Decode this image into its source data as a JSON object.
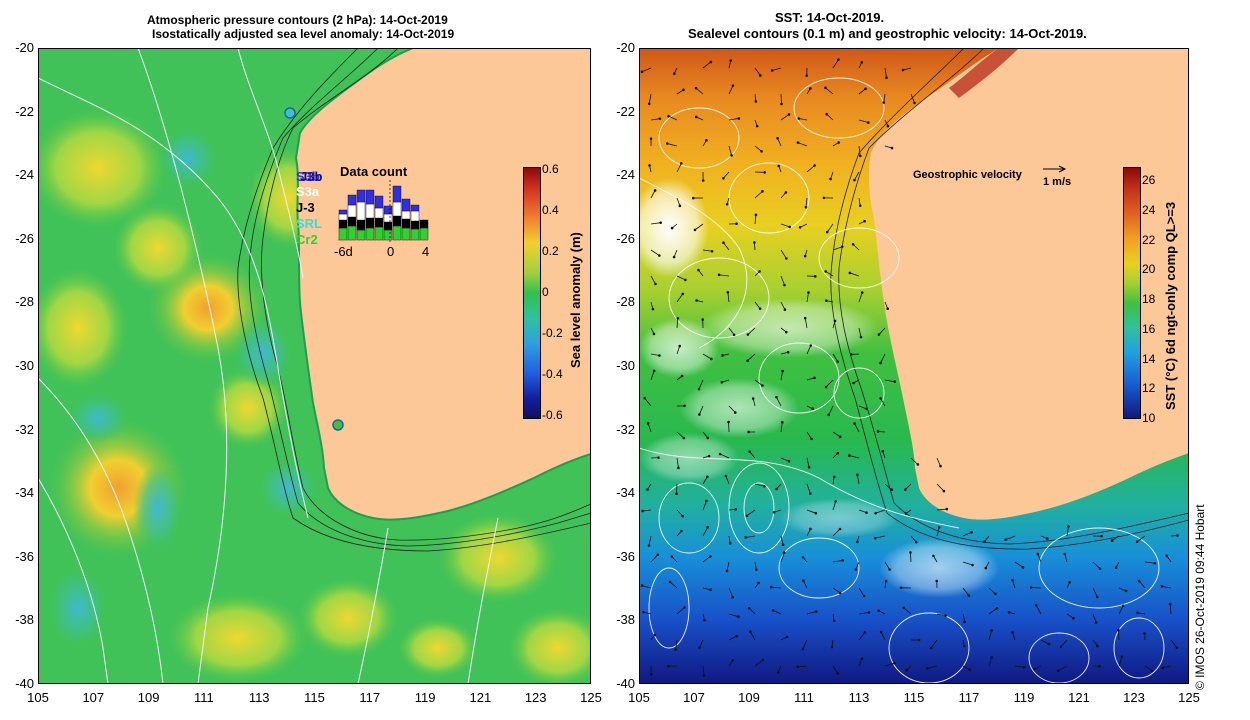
{
  "left_panel": {
    "title_line1": "Atmospheric pressure contours (2 hPa): 14-Oct-2019",
    "title_line2": "Isostatically adjusted sea level anomaly: 14-Oct-2019",
    "colorbar_label": "Sea level anomaly (m)",
    "colorbar_ticks": [
      "0.6",
      "0.4",
      "0.2",
      "0",
      "-0.2",
      "-0.4",
      "-0.6"
    ],
    "data_count": {
      "title": "Data count",
      "satellites": [
        {
          "name": "S3b",
          "color": "#3030e0"
        },
        {
          "name": "J3b",
          "color": "#101080"
        },
        {
          "name": "S3a",
          "color": "#ffffff"
        },
        {
          "name": "J-3",
          "color": "#000000"
        },
        {
          "name": "SRL",
          "color": "#30e0e0"
        },
        {
          "name": "Cr2",
          "color": "#30d030"
        }
      ],
      "axis_labels": [
        "-6d",
        "0",
        "4"
      ]
    }
  },
  "right_panel": {
    "title_line1": "SST: 14-Oct-2019.",
    "title_line2": "Sealevel contours (0.1 m) and geostrophic velocity: 14-Oct-2019.",
    "velocity_label": "Geostrophic velocity",
    "velocity_scale": "1 m/s",
    "colorbar_label": "SST (°C) 6d ngt-only comp QL>=3",
    "colorbar_ticks": [
      "26",
      "24",
      "22",
      "20",
      "18",
      "16",
      "14",
      "12",
      "10"
    ]
  },
  "axes": {
    "lat_ticks": [
      "-20",
      "-22",
      "-24",
      "-26",
      "-28",
      "-30",
      "-32",
      "-34",
      "-36",
      "-38",
      "-40"
    ],
    "lon_ticks": [
      "105",
      "107",
      "109",
      "111",
      "113",
      "115",
      "117",
      "119",
      "121",
      "123",
      "125"
    ]
  },
  "credit": "©  IMOS 26-Oct-2019 09:44 Hobart",
  "colors": {
    "land": "#fcc898",
    "sla_bg": "#33c24a",
    "sst_warm": "#e07820",
    "sst_cold": "#1848c8"
  }
}
